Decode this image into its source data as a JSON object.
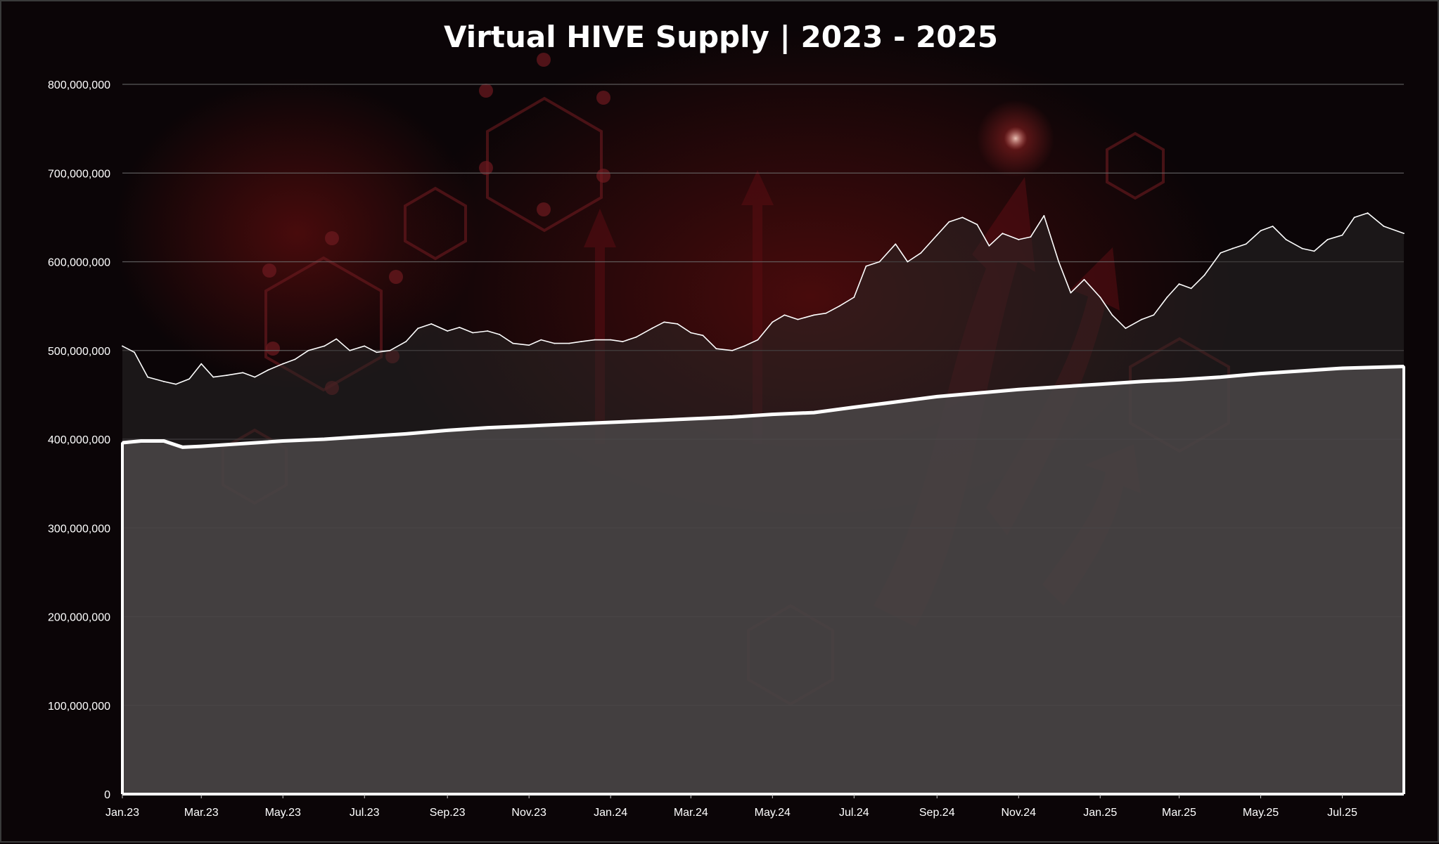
{
  "chart_data": {
    "type": "area",
    "title": "Virtual HIVE Supply | 2023 - 2025",
    "xlabel": "",
    "ylabel": "",
    "ylim": [
      0,
      800000000
    ],
    "yticks": [
      0,
      100000000,
      200000000,
      300000000,
      400000000,
      500000000,
      600000000,
      700000000,
      800000000
    ],
    "ytick_labels": [
      "0",
      "100,000,000",
      "200,000,000",
      "300,000,000",
      "400,000,000",
      "500,000,000",
      "600,000,000",
      "700,000,000",
      "800,000,000"
    ],
    "xlim": [
      "2023-01-01",
      "2025-08-16"
    ],
    "xtick_dates": [
      "2023-01-01",
      "2023-03-01",
      "2023-05-01",
      "2023-07-01",
      "2023-09-01",
      "2023-11-01",
      "2024-01-01",
      "2024-03-01",
      "2024-05-01",
      "2024-07-01",
      "2024-09-01",
      "2024-11-01",
      "2025-01-01",
      "2025-03-01",
      "2025-05-01",
      "2025-07-01"
    ],
    "xtick_labels": [
      "Jan.23",
      "Mar.23",
      "May.23",
      "Jul.23",
      "Sep.23",
      "Nov.23",
      "Jan.24",
      "Mar.24",
      "May.24",
      "Jul.24",
      "Sep.24",
      "Nov.24",
      "Jan.25",
      "Mar.25",
      "May.25",
      "Jul.25"
    ],
    "grid": true,
    "legend": "none",
    "colors": {
      "series_a_line": "#ffffff",
      "series_a_fill": "#2a2627",
      "series_b_line": "#ffffff",
      "series_b_fill": "#4a4748",
      "grid": "#6a6a6a",
      "background": "#0b0507"
    },
    "series": [
      {
        "style": "thin line with translucent area",
        "x": [
          "2023-01-01",
          "2023-01-10",
          "2023-01-20",
          "2023-02-01",
          "2023-02-10",
          "2023-02-20",
          "2023-03-01",
          "2023-03-10",
          "2023-03-20",
          "2023-04-01",
          "2023-04-10",
          "2023-04-20",
          "2023-05-01",
          "2023-05-10",
          "2023-05-20",
          "2023-06-01",
          "2023-06-10",
          "2023-06-20",
          "2023-07-01",
          "2023-07-10",
          "2023-07-20",
          "2023-08-01",
          "2023-08-10",
          "2023-08-20",
          "2023-09-01",
          "2023-09-10",
          "2023-09-20",
          "2023-10-01",
          "2023-10-10",
          "2023-10-20",
          "2023-11-01",
          "2023-11-10",
          "2023-11-20",
          "2023-12-01",
          "2023-12-10",
          "2023-12-20",
          "2024-01-01",
          "2024-01-10",
          "2024-01-20",
          "2024-02-01",
          "2024-02-10",
          "2024-02-20",
          "2024-03-01",
          "2024-03-10",
          "2024-03-20",
          "2024-04-01",
          "2024-04-10",
          "2024-04-20",
          "2024-05-01",
          "2024-05-10",
          "2024-05-20",
          "2024-06-01",
          "2024-06-10",
          "2024-06-20",
          "2024-07-01",
          "2024-07-10",
          "2024-07-20",
          "2024-08-01",
          "2024-08-10",
          "2024-08-20",
          "2024-09-01",
          "2024-09-10",
          "2024-09-20",
          "2024-10-01",
          "2024-10-10",
          "2024-10-20",
          "2024-11-01",
          "2024-11-10",
          "2024-11-20",
          "2024-12-01",
          "2024-12-10",
          "2024-12-20",
          "2025-01-01",
          "2025-01-10",
          "2025-01-20",
          "2025-02-01",
          "2025-02-10",
          "2025-02-20",
          "2025-03-01",
          "2025-03-10",
          "2025-03-20",
          "2025-04-01",
          "2025-04-10",
          "2025-04-20",
          "2025-05-01",
          "2025-05-10",
          "2025-05-20",
          "2025-06-01",
          "2025-06-10",
          "2025-06-20",
          "2025-07-01",
          "2025-07-10",
          "2025-07-20",
          "2025-08-01",
          "2025-08-16"
        ],
        "values": [
          505000000,
          498000000,
          470000000,
          465000000,
          462000000,
          468000000,
          485000000,
          470000000,
          472000000,
          475000000,
          470000000,
          478000000,
          485000000,
          490000000,
          500000000,
          505000000,
          513000000,
          500000000,
          505000000,
          498000000,
          500000000,
          510000000,
          525000000,
          530000000,
          522000000,
          526000000,
          520000000,
          522000000,
          518000000,
          508000000,
          506000000,
          512000000,
          508000000,
          508000000,
          510000000,
          512000000,
          512000000,
          510000000,
          515000000,
          525000000,
          532000000,
          530000000,
          520000000,
          517000000,
          502000000,
          500000000,
          505000000,
          512000000,
          532000000,
          540000000,
          535000000,
          540000000,
          542000000,
          550000000,
          560000000,
          595000000,
          600000000,
          620000000,
          600000000,
          610000000,
          630000000,
          645000000,
          650000000,
          642000000,
          618000000,
          632000000,
          625000000,
          628000000,
          652000000,
          600000000,
          565000000,
          580000000,
          560000000,
          540000000,
          525000000,
          535000000,
          540000000,
          560000000,
          575000000,
          570000000,
          585000000,
          610000000,
          615000000,
          620000000,
          635000000,
          640000000,
          625000000,
          615000000,
          612000000,
          625000000,
          630000000,
          650000000,
          655000000,
          640000000,
          632000000
        ]
      },
      {
        "style": "thick line with filled area",
        "x": [
          "2023-01-01",
          "2023-01-15",
          "2023-02-01",
          "2023-02-15",
          "2023-03-01",
          "2023-04-01",
          "2023-05-01",
          "2023-06-01",
          "2023-07-01",
          "2023-08-01",
          "2023-09-01",
          "2023-10-01",
          "2023-11-01",
          "2023-12-01",
          "2024-01-01",
          "2024-02-01",
          "2024-03-01",
          "2024-04-01",
          "2024-05-01",
          "2024-06-01",
          "2024-07-01",
          "2024-08-01",
          "2024-09-01",
          "2024-10-01",
          "2024-11-01",
          "2024-12-01",
          "2025-01-01",
          "2025-02-01",
          "2025-03-01",
          "2025-04-01",
          "2025-05-01",
          "2025-06-01",
          "2025-07-01",
          "2025-08-16"
        ],
        "values": [
          396000000,
          398000000,
          398000000,
          391000000,
          392000000,
          395000000,
          398000000,
          400000000,
          403000000,
          406000000,
          410000000,
          413000000,
          415000000,
          417000000,
          419000000,
          421000000,
          423000000,
          425000000,
          428000000,
          430000000,
          436000000,
          442000000,
          448000000,
          452000000,
          456000000,
          459000000,
          462000000,
          465000000,
          467000000,
          470000000,
          474000000,
          477000000,
          480000000,
          482000000
        ]
      }
    ]
  }
}
